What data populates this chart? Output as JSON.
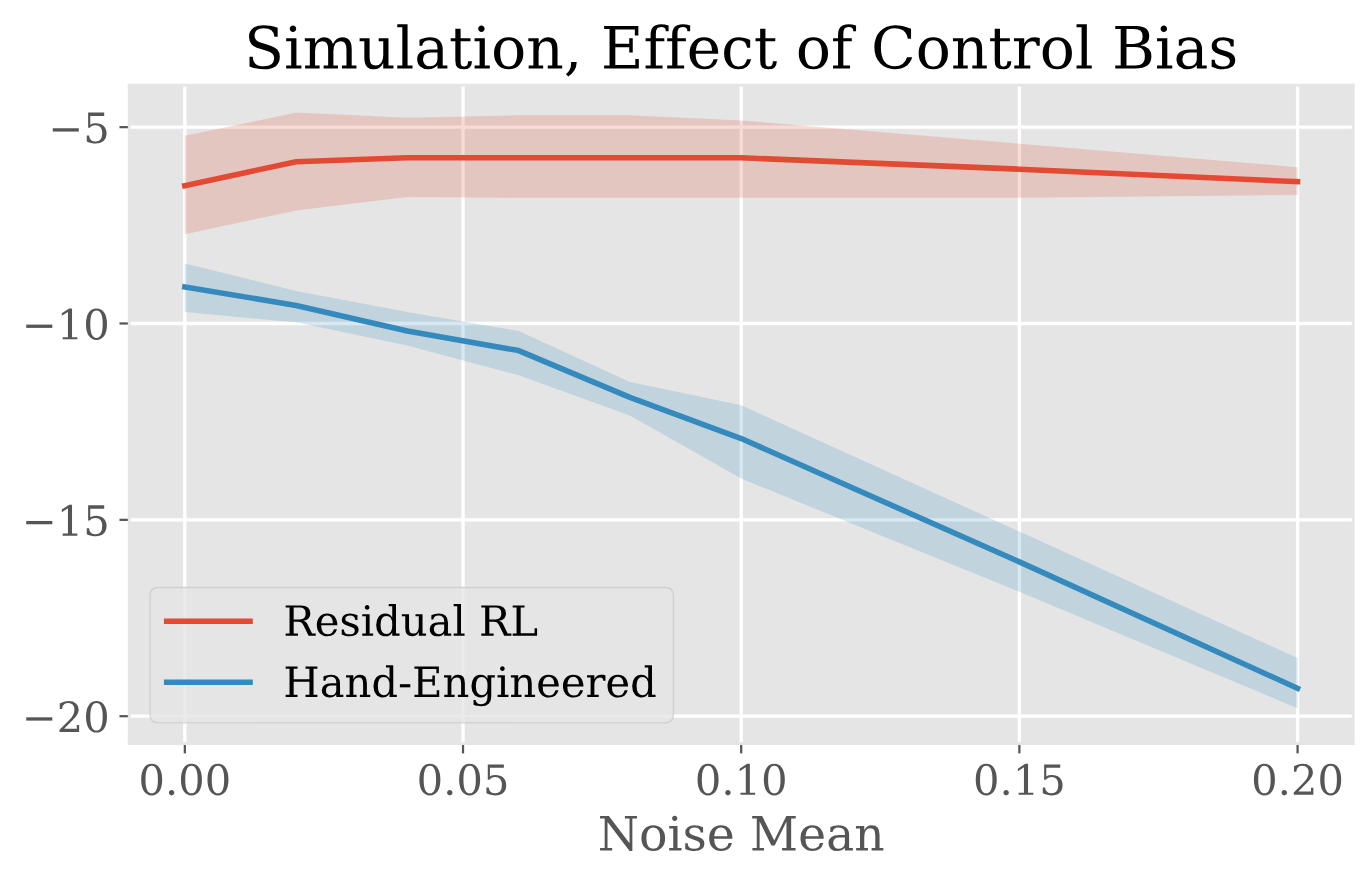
{
  "chart_data": {
    "type": "line",
    "title": "Simulation, Effect of Control Bias",
    "xlabel": "Noise Mean",
    "x": [
      0,
      0.02,
      0.04,
      0.06,
      0.08,
      0.1,
      0.15,
      0.2
    ],
    "series": [
      {
        "name": "Residual RL",
        "color": "#e24a33",
        "values": [
          -6.49,
          -5.88,
          -5.78,
          -5.78,
          -5.78,
          -5.78,
          -6.07,
          -6.39
        ],
        "lower": [
          -7.73,
          -7.12,
          -6.78,
          -6.8,
          -6.8,
          -6.8,
          -6.8,
          -6.73
        ],
        "upper": [
          -5.22,
          -4.63,
          -4.76,
          -4.7,
          -4.7,
          -4.83,
          -5.42,
          -6.02
        ]
      },
      {
        "name": "Hand-Engineered",
        "color": "#348abd",
        "values": [
          -9.07,
          -9.54,
          -10.19,
          -10.69,
          -11.88,
          -12.93,
          -16.07,
          -19.29
        ],
        "lower": [
          -9.71,
          -9.97,
          -10.56,
          -11.32,
          -12.34,
          -13.95,
          -16.83,
          -19.8
        ],
        "upper": [
          -8.47,
          -9.17,
          -9.71,
          -10.19,
          -11.49,
          -12.08,
          -15.3,
          -18.52
        ]
      }
    ],
    "xlim": [
      -0.01,
      0.21
    ],
    "xticks": [
      {
        "value": 0,
        "label": "0.00"
      },
      {
        "value": 0.05,
        "label": "0.05"
      },
      {
        "value": 0.1,
        "label": "0.10"
      },
      {
        "value": 0.15,
        "label": "0.15"
      },
      {
        "value": 0.2,
        "label": "0.20"
      }
    ],
    "ylim": [
      -20.7,
      -3.93
    ],
    "yticks": [
      {
        "value": -20,
        "label": "−20"
      },
      {
        "value": -15,
        "label": "−15"
      },
      {
        "value": -10,
        "label": "−10"
      },
      {
        "value": -5,
        "label": "−5"
      }
    ],
    "grid": true,
    "legend": "bottom left",
    "line_style": "solid"
  }
}
